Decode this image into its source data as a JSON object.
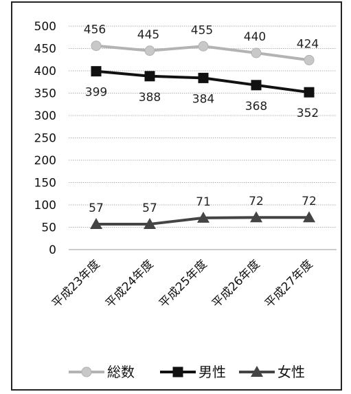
{
  "chart_data": {
    "type": "line",
    "categories": [
      "平成23年度",
      "平成24年度",
      "平成25年度",
      "平成26年度",
      "平成27年度"
    ],
    "series": [
      {
        "name": "総数",
        "values": [
          456,
          445,
          455,
          440,
          424
        ],
        "color": "#b3b3b3",
        "marker": "circle"
      },
      {
        "name": "男性",
        "values": [
          399,
          388,
          384,
          368,
          352
        ],
        "color": "#111111",
        "marker": "square"
      },
      {
        "name": "女性",
        "values": [
          57,
          57,
          71,
          72,
          72
        ],
        "color": "#444444",
        "marker": "triangle"
      }
    ],
    "yticks": [
      0,
      50,
      100,
      150,
      200,
      250,
      300,
      350,
      400,
      450,
      500
    ],
    "ylim": [
      0,
      500
    ],
    "grid": true,
    "legend_position": "bottom"
  }
}
